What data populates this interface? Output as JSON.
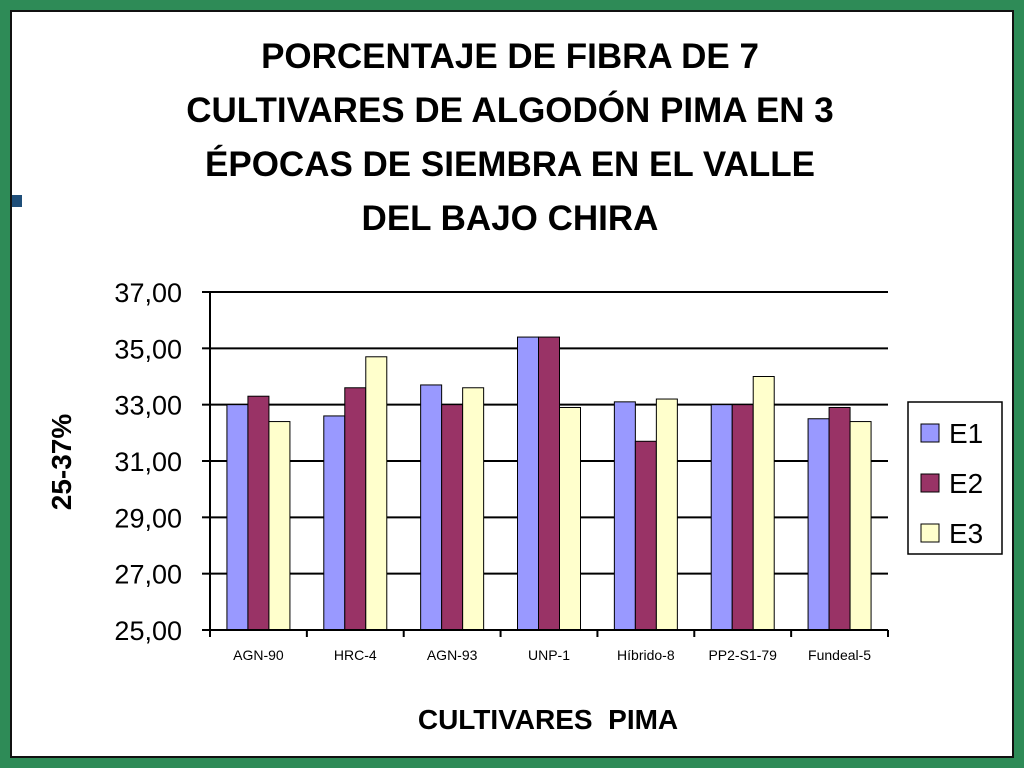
{
  "colors": {
    "E1": "#9999ff",
    "E2": "#993366",
    "E3": "#ffffcc",
    "frame": "#2e8b57"
  },
  "chart_data": {
    "type": "bar",
    "title_lines": [
      "PORCENTAJE DE FIBRA DE 7",
      "CULTIVARES DE ALGODÓN PIMA EN 3",
      "ÉPOCAS DE SIEMBRA EN EL VALLE",
      "DEL BAJO CHIRA"
    ],
    "xlabel": "CULTIVARES  PIMA",
    "ylabel": "25-37%",
    "ylim": [
      25,
      37
    ],
    "yticks": [
      "25,00",
      "27,00",
      "29,00",
      "31,00",
      "33,00",
      "35,00",
      "37,00"
    ],
    "grid": true,
    "legend_position": "right",
    "categories": [
      "AGN-90",
      "HRC-4",
      "AGN-93",
      "UNP-1",
      "Híbrido-8",
      "PP2-S1-79",
      "Fundeal-5"
    ],
    "series": [
      {
        "name": "E1",
        "values": [
          33.0,
          32.6,
          33.7,
          35.4,
          33.1,
          33.0,
          32.5
        ]
      },
      {
        "name": "E2",
        "values": [
          33.3,
          33.6,
          33.0,
          35.4,
          31.7,
          33.0,
          32.9
        ]
      },
      {
        "name": "E3",
        "values": [
          32.4,
          34.7,
          33.6,
          32.9,
          33.2,
          34.0,
          32.4
        ]
      }
    ]
  }
}
